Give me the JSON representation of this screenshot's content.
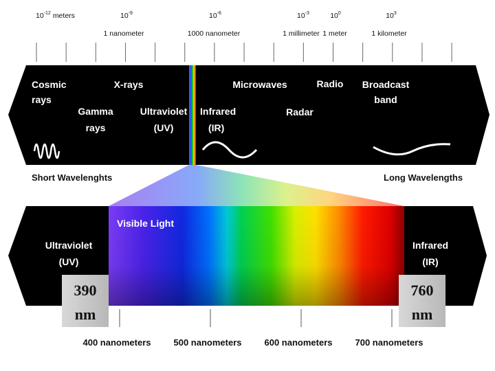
{
  "scale": [
    {
      "power": {
        "base": "10",
        "exp": "-12"
      },
      "unit": "meters"
    },
    {
      "power": {
        "base": "10",
        "exp": "-9"
      },
      "name": "1 nanometer"
    },
    {
      "power": {
        "base": "10",
        "exp": "-6"
      },
      "name": "1000 nanometer"
    },
    {
      "power": {
        "base": "10",
        "exp": "-3"
      },
      "name": "1 millimeter"
    },
    {
      "power": {
        "base": "10",
        "exp": "0"
      },
      "name": "1 meter"
    },
    {
      "power": {
        "base": "10",
        "exp": "3"
      },
      "name": "1 kilometer"
    }
  ],
  "bands": {
    "cosmic_rays": [
      "Cosmic",
      "rays"
    ],
    "x_rays": [
      "X-rays"
    ],
    "microwaves": [
      "Microwaves"
    ],
    "radio": [
      "Radio"
    ],
    "broadcast": [
      "Broadcast",
      "band"
    ],
    "gamma_rays": [
      "Gamma",
      "rays"
    ],
    "ultraviolet": [
      "Ultraviolet",
      "(UV)"
    ],
    "infrared": [
      "Infrared",
      "(IR)"
    ],
    "radar": [
      "Radar"
    ]
  },
  "short_wavelengths": "Short Wavelenghts",
  "long_wavelengths": "Long Wavelengths",
  "visible": {
    "title": "Visible Light",
    "ultraviolet": [
      "Ultraviolet",
      "(UV)"
    ],
    "infrared": [
      "Infrared",
      "(IR)"
    ],
    "lower_limit": [
      "390",
      "nm"
    ],
    "upper_limit": [
      "760",
      "nm"
    ],
    "ticks": [
      "400 nanometers",
      "500 nanometers",
      "600 nanometers",
      "700 nanometers"
    ]
  }
}
